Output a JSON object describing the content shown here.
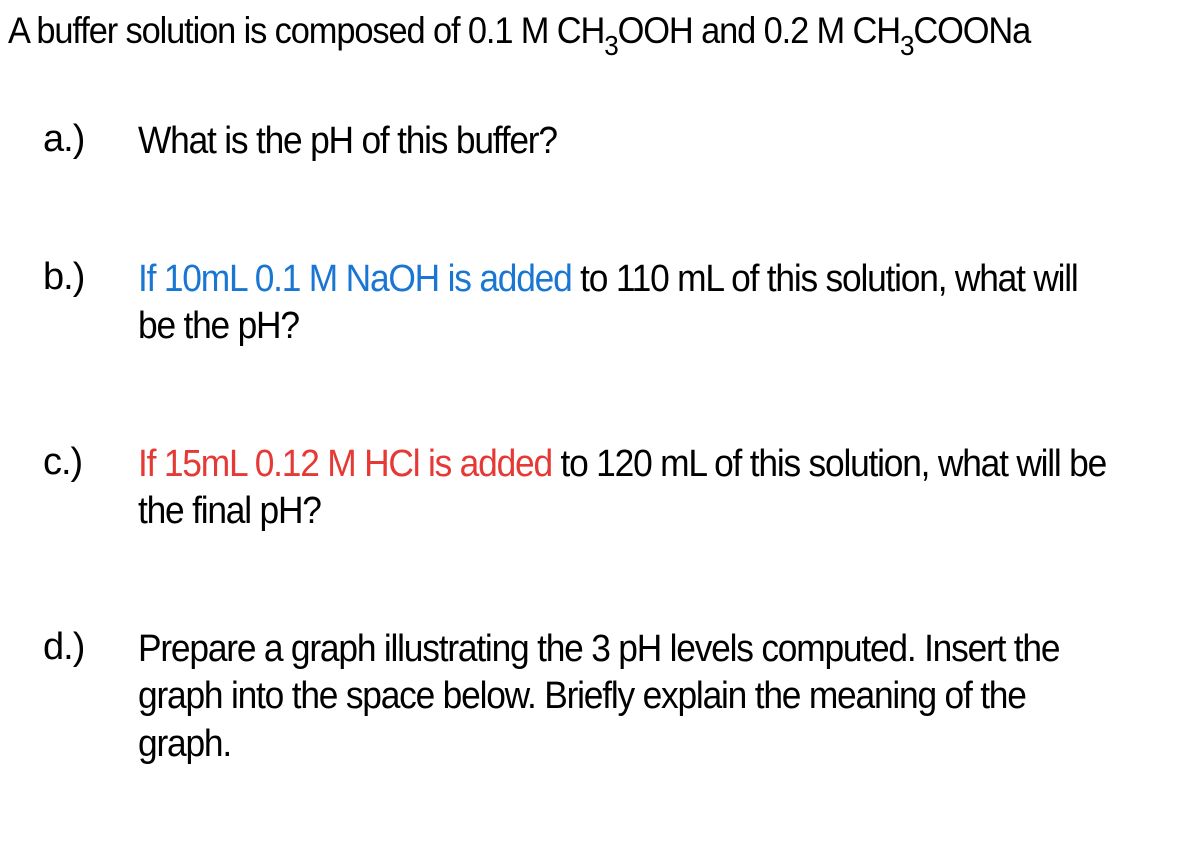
{
  "intro": {
    "prefix": "A buffer solution is composed of 0.1 M CH",
    "sub1": "3",
    "mid1": "OOH and 0.2 M CH",
    "sub2": "3",
    "suffix": "COONa"
  },
  "questions": {
    "a": {
      "label": "a.)",
      "text": "What is the pH of this buffer?"
    },
    "b": {
      "label": "b.)",
      "highlight": "If 10mL 0.1 M NaOH is added",
      "rest": " to 110 mL of this solution, what will be the pH?",
      "highlight_color": "blue"
    },
    "c": {
      "label": "c.)",
      "highlight": "If 15mL 0.12 M HCl is added",
      "rest": " to 120 mL of this solution, what will be the final pH?",
      "highlight_color": "red"
    },
    "d": {
      "label": "d.)",
      "text": "Prepare a graph illustrating the 3 pH levels computed. Insert the graph into the space below. Briefly explain the meaning of the graph."
    }
  },
  "colors": {
    "text": "#000000",
    "blue": "#1976d2",
    "red": "#e53935",
    "background": "#ffffff"
  },
  "typography": {
    "font_family": "Arial, Helvetica, sans-serif",
    "body_fontsize": 38,
    "intro_fontsize": 37,
    "sub_fontsize": 28
  }
}
